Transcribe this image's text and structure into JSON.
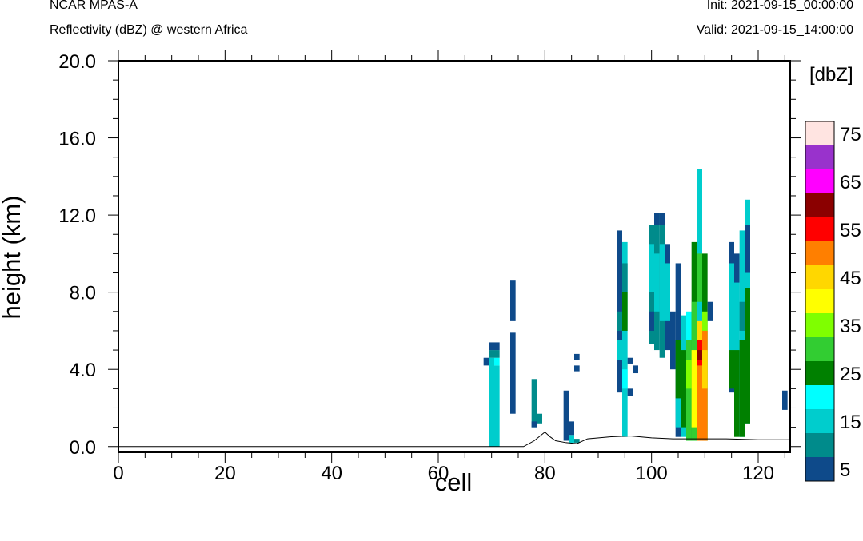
{
  "header": {
    "model": "NCAR MPAS-A",
    "field": "Reflectivity (dBZ) @ western Africa",
    "init": "Init: 2021-09-15_00:00:00",
    "valid": "Valid: 2021-09-15_14:00:00"
  },
  "chart_data": {
    "type": "heatmap",
    "title": "Reflectivity (dBZ) @ western Africa",
    "xlabel": "cell",
    "ylabel": "height (km)",
    "xlim": [
      0,
      126
    ],
    "ylim": [
      -0.3,
      20.0
    ],
    "x_ticks": [
      "0",
      "20",
      "40",
      "60",
      "80",
      "100",
      "120"
    ],
    "y_ticks": [
      "0.0",
      "4.0",
      "8.0",
      "12.0",
      "16.0",
      "20.0"
    ],
    "colorbar": {
      "units_label": "[dbZ]",
      "levels": [
        5,
        10,
        15,
        20,
        25,
        30,
        35,
        40,
        45,
        50,
        55,
        60,
        65,
        70,
        75
      ],
      "tick_labels": [
        "5",
        "15",
        "25",
        "35",
        "45",
        "55",
        "65",
        "75"
      ],
      "colors": [
        "#0e4a8a",
        "#008b8b",
        "#00cdcd",
        "#00ffff",
        "#008000",
        "#32cd32",
        "#7fff00",
        "#ffff00",
        "#ffd700",
        "#ff7f00",
        "#ff0000",
        "#8b0000",
        "#ff00ff",
        "#9932cc",
        "#ffe4e1"
      ]
    },
    "terrain_km": [
      [
        0,
        0.0
      ],
      [
        76,
        0.0
      ],
      [
        78,
        0.3
      ],
      [
        80,
        0.75
      ],
      [
        81,
        0.5
      ],
      [
        82,
        0.3
      ],
      [
        84,
        0.2
      ],
      [
        86,
        0.15
      ],
      [
        88,
        0.4
      ],
      [
        92,
        0.5
      ],
      [
        96,
        0.55
      ],
      [
        100,
        0.45
      ],
      [
        104,
        0.4
      ],
      [
        110,
        0.4
      ],
      [
        114,
        0.4
      ],
      [
        120,
        0.35
      ],
      [
        126,
        0.35
      ]
    ],
    "columns": [
      {
        "x": 69,
        "cells": [
          [
            4.2,
            4.6,
            5
          ]
        ]
      },
      {
        "x": 70,
        "cells": [
          [
            0,
            4.6,
            15
          ],
          [
            4.6,
            5.0,
            10
          ],
          [
            5.0,
            5.4,
            5
          ]
        ]
      },
      {
        "x": 71,
        "cells": [
          [
            0,
            4.2,
            15
          ],
          [
            4.2,
            4.6,
            20
          ],
          [
            4.6,
            5.0,
            10
          ],
          [
            5.0,
            5.4,
            5
          ]
        ]
      },
      {
        "x": 74,
        "cells": [
          [
            1.7,
            5.9,
            5
          ],
          [
            6.5,
            8.6,
            5
          ]
        ]
      },
      {
        "x": 78,
        "cells": [
          [
            1.0,
            3.5,
            10
          ],
          [
            1.0,
            1.3,
            5
          ]
        ]
      },
      {
        "x": 79,
        "cells": [
          [
            1.2,
            1.7,
            10
          ]
        ]
      },
      {
        "x": 84,
        "cells": [
          [
            0.3,
            2.9,
            5
          ]
        ]
      },
      {
        "x": 85,
        "cells": [
          [
            0.2,
            0.6,
            15
          ],
          [
            0.6,
            1.3,
            5
          ]
        ]
      },
      {
        "x": 86,
        "cells": [
          [
            3.9,
            4.2,
            5
          ],
          [
            4.5,
            4.8,
            5
          ],
          [
            0.2,
            0.4,
            10
          ]
        ]
      },
      {
        "x": 94,
        "cells": [
          [
            2.8,
            11.2,
            5
          ],
          [
            4.5,
            5.5,
            15
          ],
          [
            6.0,
            7.0,
            10
          ]
        ]
      },
      {
        "x": 95,
        "cells": [
          [
            0.5,
            10.6,
            15
          ],
          [
            6.0,
            8.0,
            25
          ],
          [
            8.0,
            9.5,
            10
          ],
          [
            3.0,
            4.0,
            20
          ]
        ]
      },
      {
        "x": 96,
        "cells": [
          [
            2.6,
            3.0,
            5
          ],
          [
            4.3,
            4.6,
            5
          ]
        ]
      },
      {
        "x": 97,
        "cells": [
          [
            3.8,
            4.2,
            5
          ]
        ]
      },
      {
        "x": 100,
        "cells": [
          [
            5.3,
            11.5,
            10
          ],
          [
            8.0,
            10.5,
            15
          ],
          [
            6.0,
            7.0,
            5
          ]
        ]
      },
      {
        "x": 101,
        "cells": [
          [
            5.0,
            12.1,
            10
          ],
          [
            7.0,
            10.0,
            15
          ],
          [
            11.5,
            12.1,
            5
          ]
        ]
      },
      {
        "x": 102,
        "cells": [
          [
            4.6,
            12.1,
            10
          ],
          [
            6.5,
            10.5,
            15
          ],
          [
            11.5,
            12.1,
            5
          ]
        ]
      },
      {
        "x": 103,
        "cells": [
          [
            5.0,
            10.5,
            5
          ],
          [
            6.5,
            9.5,
            15
          ]
        ]
      },
      {
        "x": 104,
        "cells": [
          [
            4.0,
            7.0,
            5
          ]
        ]
      },
      {
        "x": 105,
        "cells": [
          [
            0.5,
            9.5,
            5
          ],
          [
            2.5,
            5.5,
            25
          ],
          [
            1.0,
            2.5,
            15
          ]
        ]
      },
      {
        "x": 106,
        "cells": [
          [
            0.5,
            6.8,
            15
          ],
          [
            1.0,
            5.0,
            25
          ]
        ]
      },
      {
        "x": 107,
        "cells": [
          [
            0.3,
            7.0,
            20
          ],
          [
            0.3,
            5.5,
            30
          ],
          [
            3.0,
            4.5,
            35
          ]
        ]
      },
      {
        "x": 108,
        "cells": [
          [
            0.3,
            10.6,
            25
          ],
          [
            0.3,
            7.5,
            30
          ],
          [
            1.0,
            5.0,
            40
          ]
        ]
      },
      {
        "x": 109,
        "cells": [
          [
            0.3,
            14.4,
            15
          ],
          [
            7.5,
            10.0,
            30
          ],
          [
            0.3,
            6.5,
            45
          ],
          [
            0.3,
            5.5,
            50
          ],
          [
            4.2,
            5.5,
            55
          ],
          [
            4.5,
            5.0,
            60
          ]
        ]
      },
      {
        "x": 110,
        "cells": [
          [
            0.3,
            10.0,
            25
          ],
          [
            0.3,
            7.0,
            35
          ],
          [
            0.3,
            6.0,
            50
          ],
          [
            3.0,
            5.0,
            45
          ]
        ]
      },
      {
        "x": 111,
        "cells": [
          [
            6.5,
            7.5,
            5
          ]
        ]
      },
      {
        "x": 115,
        "cells": [
          [
            2.8,
            10.6,
            5
          ],
          [
            4.0,
            9.5,
            15
          ],
          [
            3.0,
            5.0,
            25
          ]
        ]
      },
      {
        "x": 116,
        "cells": [
          [
            2.5,
            10.0,
            5
          ],
          [
            3.5,
            8.5,
            15
          ],
          [
            0.5,
            5.0,
            25
          ]
        ]
      },
      {
        "x": 117,
        "cells": [
          [
            0.5,
            11.2,
            15
          ],
          [
            0.5,
            5.5,
            25
          ],
          [
            6.0,
            7.5,
            10
          ]
        ]
      },
      {
        "x": 118,
        "cells": [
          [
            1.2,
            12.8,
            15
          ],
          [
            1.2,
            8.2,
            25
          ],
          [
            9.0,
            11.5,
            5
          ]
        ]
      },
      {
        "x": 125,
        "cells": [
          [
            1.9,
            2.9,
            5
          ]
        ]
      }
    ]
  }
}
